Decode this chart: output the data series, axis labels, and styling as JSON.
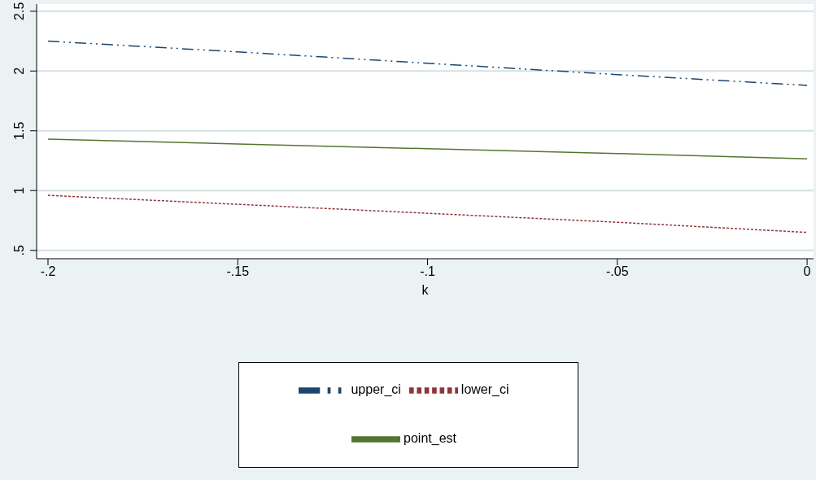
{
  "chart_data": {
    "type": "line",
    "xlabel": "k",
    "x": [
      -0.2,
      -0.15,
      -0.1,
      -0.05,
      0
    ],
    "series": [
      {
        "name": "upper_ci",
        "color": "#1a476f",
        "line_style": "dashed",
        "values": [
          2.25,
          2.16,
          2.065,
          1.97,
          1.88
        ]
      },
      {
        "name": "lower_ci",
        "color": "#90353b",
        "line_style": "dotted",
        "values": [
          0.96,
          0.885,
          0.81,
          0.735,
          0.65
        ]
      },
      {
        "name": "point_est",
        "color": "#55752f",
        "line_style": "solid",
        "values": [
          1.43,
          1.39,
          1.35,
          1.31,
          1.265
        ]
      }
    ],
    "xlim": [
      -0.203,
      0.0017
    ],
    "xticks": [
      {
        "value": -0.2,
        "label": "-.2"
      },
      {
        "value": -0.15,
        "label": "-.15"
      },
      {
        "value": -0.1,
        "label": "-.1"
      },
      {
        "value": -0.05,
        "label": "-.05"
      },
      0
    ],
    "ylim": [
      0.43,
      2.56
    ],
    "yticks": [
      {
        "value": 0.5,
        "label": ".5"
      },
      1,
      1.5,
      2,
      2.5
    ],
    "grid": "y",
    "legend": "bottom",
    "marker": "none"
  }
}
